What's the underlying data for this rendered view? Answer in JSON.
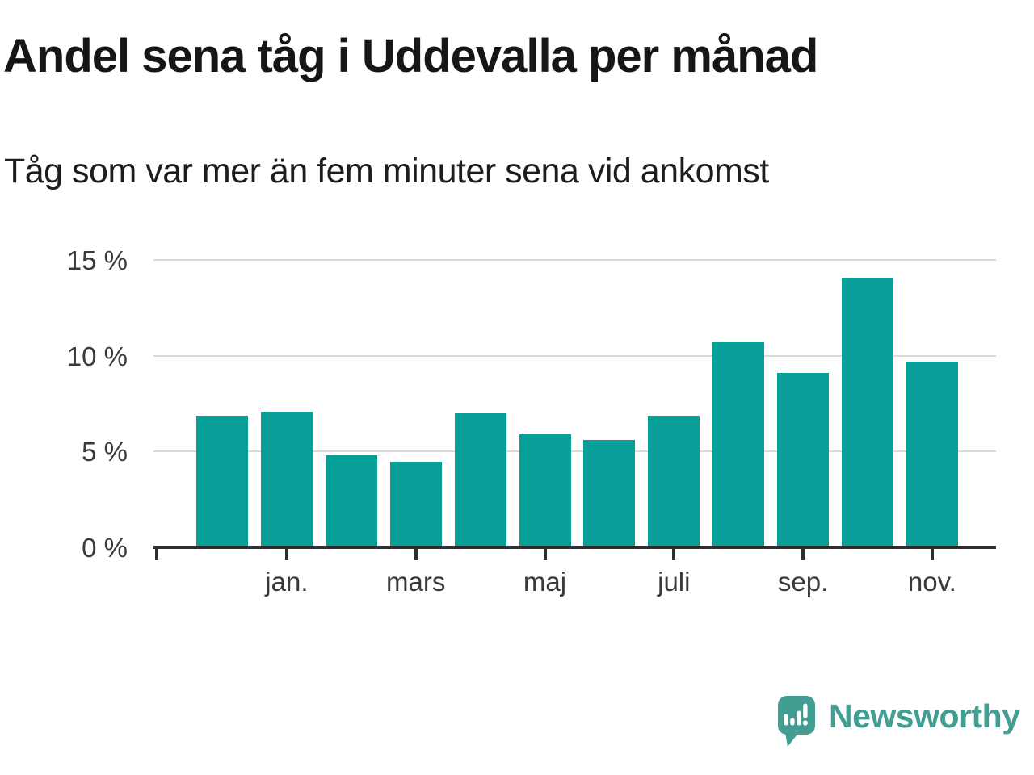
{
  "chart_data": {
    "type": "bar",
    "title": "Andel sena tåg i Uddevalla per månad",
    "subtitle": "Tåg som var mer än fem minuter sena vid ankomst",
    "categories": [
      "",
      "jan.",
      "",
      "mars",
      "",
      "maj",
      "",
      "juli",
      "",
      "sep.",
      "",
      "nov."
    ],
    "values": [
      6.8,
      7.0,
      4.7,
      4.4,
      6.9,
      5.8,
      5.5,
      6.8,
      10.6,
      9.0,
      14.0,
      9.6
    ],
    "unit": "%",
    "y_tick_labels": [
      "15 %",
      "10 %",
      "5 %",
      "0 %"
    ],
    "ylim": [
      0,
      15
    ],
    "xlabel": "",
    "ylabel": "",
    "grid": true,
    "legend_position": "none",
    "bar_color": "#089f99",
    "gridline_color": "#dadada",
    "axis_color": "#2e2e2e",
    "label_color": "#3a3a3a"
  },
  "footer": {
    "logo_text": "Newsworthy",
    "logo_color": "#429d93"
  }
}
